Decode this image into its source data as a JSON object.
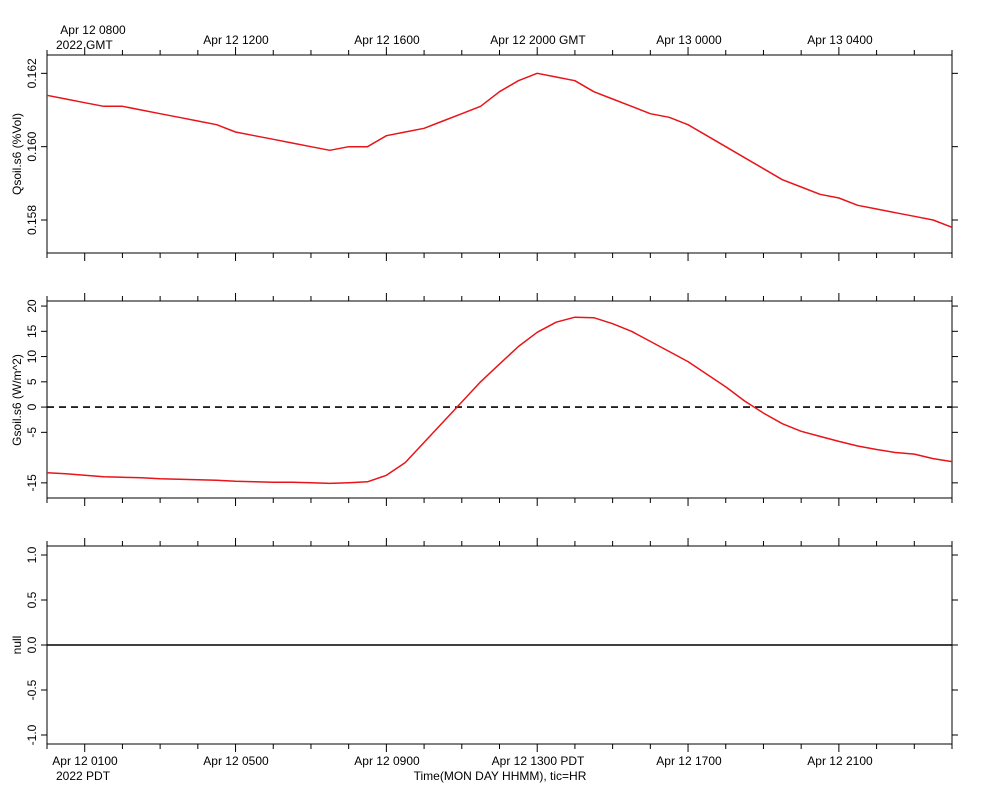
{
  "top_axis": {
    "ticks": [
      {
        "label": "Apr 12 0800",
        "hours": 0
      },
      {
        "label": "Apr 12 1200",
        "hours": 4
      },
      {
        "label": "Apr 12 1600",
        "hours": 8
      },
      {
        "label": "Apr 12 2000 GMT",
        "hours": 12
      },
      {
        "label": "Apr 13 0000",
        "hours": 16
      },
      {
        "label": "Apr 13 0400",
        "hours": 20
      }
    ],
    "year_label": "2022 GMT"
  },
  "bottom_axis": {
    "ticks": [
      {
        "label": "Apr 12 0100",
        "hours": 0
      },
      {
        "label": "Apr 12 0500",
        "hours": 4
      },
      {
        "label": "Apr 12 0900",
        "hours": 8
      },
      {
        "label": "Apr 12 1300 PDT",
        "hours": 12
      },
      {
        "label": "Apr 12 1700",
        "hours": 16
      },
      {
        "label": "Apr 12 2100",
        "hours": 20
      }
    ],
    "year_label": "2022 PDT",
    "title": "Time(MON DAY HHMM), tic=HR"
  },
  "chart_data": [
    {
      "type": "line",
      "ylabel": "Qsoil.s6 (%Vol)",
      "yticks": [
        "0.158",
        "0.160",
        "0.162"
      ],
      "ylim": [
        0.1571,
        0.1625
      ],
      "xlim": [
        -1,
        23
      ],
      "series": [
        {
          "color": "#e8141a",
          "x": [
            -1.0,
            -0.5,
            0.0,
            0.5,
            1.0,
            1.5,
            2.0,
            2.5,
            3.0,
            3.5,
            4.0,
            4.5,
            5.0,
            5.5,
            6.0,
            6.5,
            7.0,
            7.5,
            8.0,
            8.5,
            9.0,
            9.5,
            10.0,
            10.5,
            11.0,
            11.5,
            12.0,
            12.5,
            13.0,
            13.5,
            14.0,
            14.5,
            15.0,
            15.5,
            16.0,
            16.5,
            17.0,
            17.5,
            18.0,
            18.5,
            19.0,
            19.5,
            20.0,
            20.5,
            21.0,
            21.5,
            22.0,
            22.5,
            23.0
          ],
          "y": [
            0.1614,
            0.1613,
            0.1612,
            0.1611,
            0.1611,
            0.161,
            0.1609,
            0.1608,
            0.1607,
            0.1606,
            0.1604,
            0.1603,
            0.1602,
            0.1601,
            0.16,
            0.1599,
            0.16,
            0.16,
            0.1603,
            0.1604,
            0.1605,
            0.1607,
            0.1609,
            0.1611,
            0.1615,
            0.1618,
            0.162,
            0.1619,
            0.1618,
            0.1615,
            0.1613,
            0.1611,
            0.1609,
            0.1608,
            0.1606,
            0.1603,
            0.16,
            0.1597,
            0.1594,
            0.1591,
            0.1589,
            0.1587,
            0.1586,
            0.1584,
            0.1583,
            0.1582,
            0.1581,
            0.158,
            0.1578
          ]
        }
      ]
    },
    {
      "type": "line",
      "ylabel": "Gsoil.s6 (W/m^2)",
      "yticks": [
        "-15",
        "-5",
        "0",
        "5",
        "10",
        "15",
        "20"
      ],
      "ylim": [
        -18,
        21
      ],
      "xlim": [
        -1,
        23
      ],
      "reference_line": 0,
      "series": [
        {
          "color": "#e8141a",
          "x": [
            -1.0,
            -0.5,
            0.0,
            0.5,
            1.0,
            1.5,
            2.0,
            2.5,
            3.0,
            3.5,
            4.0,
            4.5,
            5.0,
            5.5,
            6.0,
            6.5,
            7.0,
            7.5,
            8.0,
            8.5,
            9.0,
            9.5,
            10.0,
            10.5,
            11.0,
            11.5,
            12.0,
            12.5,
            13.0,
            13.5,
            14.0,
            14.5,
            15.0,
            15.5,
            16.0,
            16.5,
            17.0,
            17.5,
            18.0,
            18.5,
            19.0,
            19.5,
            20.0,
            20.5,
            21.0,
            21.5,
            22.0,
            22.5,
            23.0
          ],
          "y": [
            -13.0,
            -13.2,
            -13.5,
            -13.8,
            -13.9,
            -14.0,
            -14.2,
            -14.3,
            -14.4,
            -14.5,
            -14.7,
            -14.8,
            -14.9,
            -14.9,
            -15.0,
            -15.1,
            -15.0,
            -14.8,
            -13.5,
            -11.0,
            -7.0,
            -3.0,
            1.0,
            5.0,
            8.5,
            12.0,
            14.8,
            16.8,
            17.8,
            17.7,
            16.5,
            15.0,
            13.0,
            11.0,
            9.0,
            6.5,
            4.0,
            1.2,
            -1.2,
            -3.3,
            -4.8,
            -5.8,
            -6.8,
            -7.7,
            -8.4,
            -9.0,
            -9.3,
            -10.2,
            -10.8
          ]
        }
      ]
    },
    {
      "type": "line",
      "ylabel": "null",
      "yticks": [
        "-1.0",
        "-0.5",
        "0.0",
        "0.5",
        "1.0"
      ],
      "ylim": [
        -1.1,
        1.1
      ],
      "xlim": [
        -1,
        23
      ],
      "series": [
        {
          "color": "#000000",
          "x": [
            -1,
            23
          ],
          "y": [
            0,
            0
          ]
        }
      ]
    }
  ]
}
